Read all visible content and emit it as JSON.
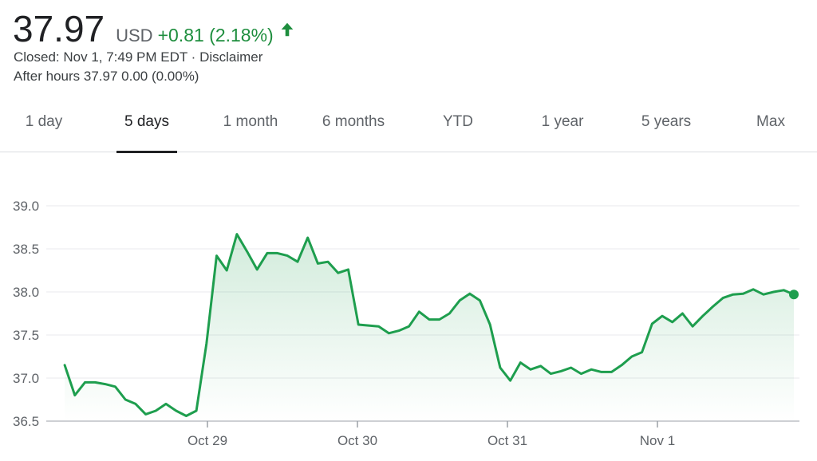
{
  "quote": {
    "price": "37.97",
    "currency": "USD",
    "change": "+0.81 (2.18%)",
    "direction_icon": "arrow-up-icon",
    "closed_label": "Closed: Nov 1, 7:49 PM EDT",
    "separator": " · ",
    "disclaimer": "Disclaimer",
    "after_hours": "After hours 37.97 0.00 (0.00%)"
  },
  "tabs": [
    {
      "label": "1 day"
    },
    {
      "label": "5 days",
      "active": true
    },
    {
      "label": "1 month"
    },
    {
      "label": "6 months"
    },
    {
      "label": "YTD"
    },
    {
      "label": "1 year"
    },
    {
      "label": "5 years"
    },
    {
      "label": "Max"
    }
  ],
  "colors": {
    "positive": "#1e8e3e",
    "line": "#1e9e4e",
    "text": "#202124",
    "muted": "#5f6368",
    "grid": "#e8eaed"
  },
  "chart_data": {
    "type": "line",
    "title": "",
    "xlabel": "",
    "ylabel": "",
    "ylim": [
      36.5,
      39.0
    ],
    "yticks": [
      39.0,
      38.5,
      38.0,
      37.5,
      37.0,
      36.5
    ],
    "ytick_labels": [
      "39.0",
      "38.5",
      "38.0",
      "37.5",
      "37.0",
      "36.5"
    ],
    "xlim": [
      0,
      4.6
    ],
    "x_tick_positions": [
      1,
      2,
      3,
      4
    ],
    "x_tick_labels": [
      "Oct 29",
      "Oct 30",
      "Oct 31",
      "Nov 1"
    ],
    "grid": true,
    "legend": "none",
    "series": [
      {
        "x": [
          0.05,
          0.12,
          0.19,
          0.26,
          0.33,
          0.4,
          0.47,
          0.54,
          0.61,
          0.68,
          0.75,
          0.82,
          0.89,
          0.96,
          1.03,
          1.1,
          1.17,
          1.24,
          1.31,
          1.38,
          1.45,
          1.52,
          1.59,
          1.66,
          1.73,
          1.8,
          1.87,
          1.94,
          2.01,
          2.08,
          2.15,
          2.22,
          2.29,
          2.36,
          2.43,
          2.5,
          2.57,
          2.64,
          2.71,
          2.78,
          2.85,
          2.92,
          2.99,
          3.06,
          3.13,
          3.2,
          3.27,
          3.34,
          3.41,
          3.48,
          3.55,
          3.62,
          3.69,
          3.76,
          3.83,
          3.9,
          3.97,
          4.04,
          4.11,
          4.18,
          4.25,
          4.32,
          4.39,
          4.46,
          4.53,
          4.6,
          4.67,
          4.74,
          4.81,
          4.88,
          4.95,
          5.02,
          5.09
        ],
        "y": [
          37.15,
          36.8,
          36.95,
          36.95,
          36.93,
          36.9,
          36.75,
          36.7,
          36.58,
          36.62,
          36.7,
          36.62,
          36.56,
          36.62,
          37.4,
          38.42,
          38.25,
          38.67,
          38.47,
          38.26,
          38.45,
          38.45,
          38.42,
          38.35,
          38.63,
          38.33,
          38.35,
          38.22,
          38.26,
          37.62,
          37.61,
          37.6,
          37.52,
          37.55,
          37.6,
          37.77,
          37.68,
          37.68,
          37.75,
          37.9,
          37.98,
          37.9,
          37.62,
          37.12,
          36.97,
          37.18,
          37.1,
          37.14,
          37.05,
          37.08,
          37.12,
          37.05,
          37.1,
          37.07,
          37.07,
          37.15,
          37.25,
          37.3,
          37.63,
          37.72,
          37.65,
          37.75,
          37.6,
          37.72,
          37.83,
          37.93,
          37.97,
          37.98,
          38.03,
          37.97,
          38.0,
          38.02,
          37.97
        ]
      }
    ]
  }
}
